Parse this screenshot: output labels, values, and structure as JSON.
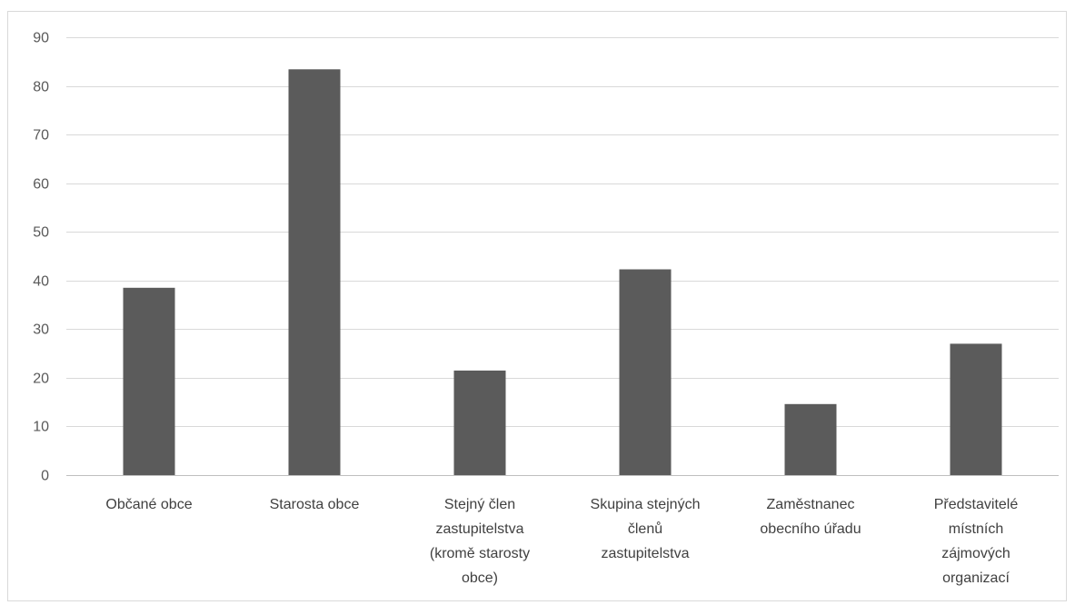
{
  "chart_data": {
    "type": "bar",
    "categories": [
      [
        "Občané obce"
      ],
      [
        "Starosta obce"
      ],
      [
        "Stejný člen",
        "zastupitelstva",
        "(kromě starosty",
        "obce)"
      ],
      [
        "Skupina stejných",
        "členů",
        "zastupitelstva"
      ],
      [
        "Zaměstnanec",
        "obecního úřadu"
      ],
      [
        "Představitelé",
        "místních",
        "zájmových",
        "organizací"
      ]
    ],
    "values": [
      38.5,
      83.4,
      21.5,
      42.3,
      14.6,
      27.0
    ],
    "ylim": [
      0,
      90
    ],
    "yticks": [
      0,
      10,
      20,
      30,
      40,
      50,
      60,
      70,
      80,
      90
    ],
    "grid": true,
    "colors": {
      "bar": "#5b5b5b",
      "grid": "#d9d9d9",
      "axis": "#bfbfbf"
    }
  }
}
